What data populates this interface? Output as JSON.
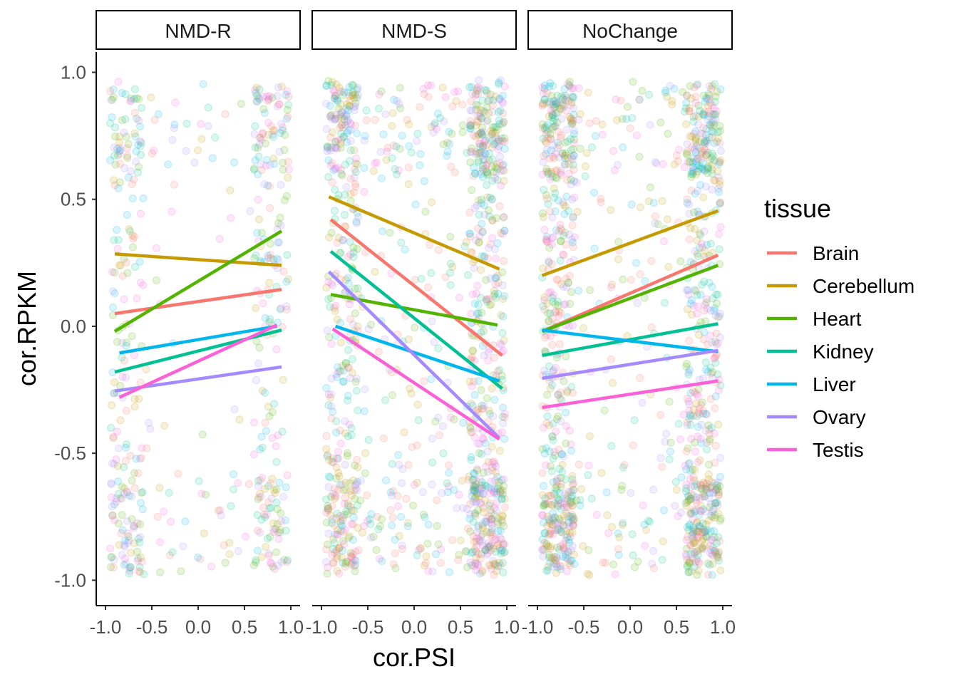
{
  "chart_data": {
    "type": "scatter",
    "xlabel": "cor.PSI",
    "ylabel": "cor.RPKM",
    "xlim": [
      -1.0,
      1.0
    ],
    "ylim": [
      -1.0,
      1.0
    ],
    "x_ticks": [
      "-1.0",
      "-0.5",
      "0.0",
      "0.5",
      "1.0"
    ],
    "y_ticks": [
      "1.0",
      "0.5",
      "0.0",
      "-0.5",
      "-1.0"
    ],
    "grid": false,
    "legend": {
      "title": "tissue",
      "position": "right"
    },
    "facets": [
      "NMD-R",
      "NMD-S",
      "NoChange"
    ],
    "point_alpha": 0.15,
    "series": [
      {
        "name": "Brain",
        "color": "#F8766D"
      },
      {
        "name": "Cerebellum",
        "color": "#C49A00"
      },
      {
        "name": "Heart",
        "color": "#53B400"
      },
      {
        "name": "Kidney",
        "color": "#00C094"
      },
      {
        "name": "Liver",
        "color": "#00B6EB"
      },
      {
        "name": "Ovary",
        "color": "#A58AFF"
      },
      {
        "name": "Testis",
        "color": "#FB61D7"
      }
    ],
    "fit_lines": {
      "NMD-R": {
        "Brain": [
          [
            -0.9,
            0.05
          ],
          [
            0.9,
            0.145
          ]
        ],
        "Cerebellum": [
          [
            -0.9,
            0.285
          ],
          [
            0.9,
            0.24
          ]
        ],
        "Heart": [
          [
            -0.9,
            -0.02
          ],
          [
            0.9,
            0.375
          ]
        ],
        "Kidney": [
          [
            -0.9,
            -0.18
          ],
          [
            0.9,
            -0.015
          ]
        ],
        "Liver": [
          [
            -0.85,
            -0.105
          ],
          [
            0.85,
            0.0
          ]
        ],
        "Ovary": [
          [
            -0.9,
            -0.255
          ],
          [
            0.9,
            -0.16
          ]
        ],
        "Testis": [
          [
            -0.85,
            -0.28
          ],
          [
            0.85,
            0.005
          ]
        ]
      },
      "NMD-S": {
        "Brain": [
          [
            -0.9,
            0.42
          ],
          [
            0.95,
            -0.115
          ]
        ],
        "Cerebellum": [
          [
            -0.92,
            0.51
          ],
          [
            0.92,
            0.225
          ]
        ],
        "Heart": [
          [
            -0.9,
            0.125
          ],
          [
            0.9,
            0.005
          ]
        ],
        "Kidney": [
          [
            -0.9,
            0.295
          ],
          [
            0.95,
            -0.245
          ]
        ],
        "Liver": [
          [
            -0.85,
            0.0
          ],
          [
            0.92,
            -0.215
          ]
        ],
        "Ovary": [
          [
            -0.92,
            0.215
          ],
          [
            0.92,
            -0.44
          ]
        ],
        "Testis": [
          [
            -0.88,
            -0.01
          ],
          [
            0.92,
            -0.445
          ]
        ]
      },
      "NoChange": {
        "Brain": [
          [
            -0.95,
            -0.02
          ],
          [
            0.95,
            0.28
          ]
        ],
        "Cerebellum": [
          [
            -0.95,
            0.2
          ],
          [
            0.95,
            0.455
          ]
        ],
        "Heart": [
          [
            -0.95,
            -0.02
          ],
          [
            0.95,
            0.24
          ]
        ],
        "Kidney": [
          [
            -0.95,
            -0.115
          ],
          [
            0.95,
            0.01
          ]
        ],
        "Liver": [
          [
            -0.95,
            -0.015
          ],
          [
            0.95,
            -0.1
          ]
        ],
        "Ovary": [
          [
            -0.95,
            -0.205
          ],
          [
            0.95,
            -0.095
          ]
        ],
        "Testis": [
          [
            -0.95,
            -0.32
          ],
          [
            0.95,
            -0.215
          ]
        ]
      }
    },
    "point_density": {
      "NMD-R": {
        "count": 520,
        "left_share": 0.45,
        "mid_share": 0.15,
        "right_share": 0.4
      },
      "NMD-S": {
        "count": 1200,
        "left_share": 0.32,
        "mid_share": 0.2,
        "right_share": 0.48
      },
      "NoChange": {
        "count": 1250,
        "left_share": 0.4,
        "mid_share": 0.15,
        "right_share": 0.45
      }
    }
  }
}
